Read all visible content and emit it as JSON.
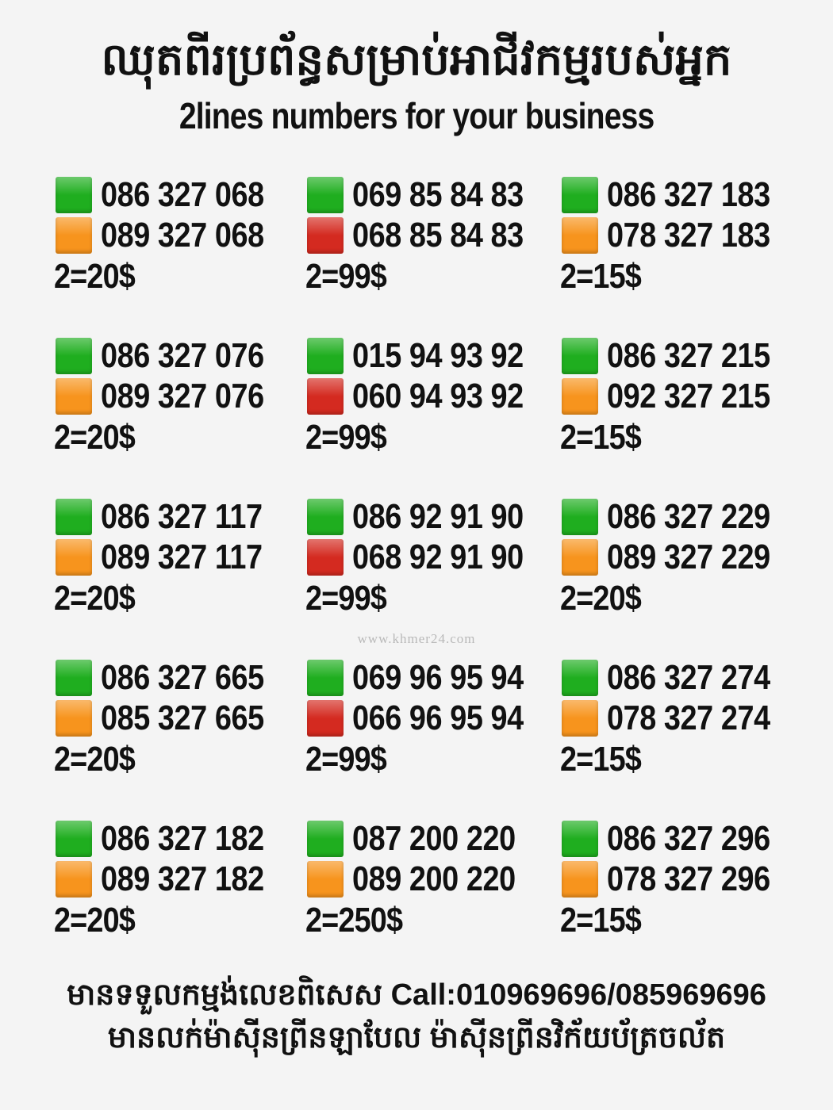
{
  "header": {
    "title_khmer": "ឈុតពីរប្រព័ន្ធសម្រាប់អាជីវកម្មរបស់អ្នក",
    "title_english": "2lines numbers for your business"
  },
  "colors": {
    "green": "#1fae1f",
    "orange": "#f7941d",
    "red": "#d42a20"
  },
  "cards": [
    {
      "lines": [
        {
          "color": "green",
          "number": "086 327 068"
        },
        {
          "color": "orange",
          "number": "089 327 068"
        }
      ],
      "price": "2=20$"
    },
    {
      "lines": [
        {
          "color": "green",
          "number": "069 85 84 83"
        },
        {
          "color": "red",
          "number": "068 85 84 83"
        }
      ],
      "price": "2=99$"
    },
    {
      "lines": [
        {
          "color": "green",
          "number": "086 327 183"
        },
        {
          "color": "orange",
          "number": "078 327 183"
        }
      ],
      "price": "2=15$"
    },
    {
      "lines": [
        {
          "color": "green",
          "number": "086 327 076"
        },
        {
          "color": "orange",
          "number": "089 327 076"
        }
      ],
      "price": "2=20$"
    },
    {
      "lines": [
        {
          "color": "green",
          "number": "015 94 93 92"
        },
        {
          "color": "red",
          "number": "060 94 93 92"
        }
      ],
      "price": "2=99$"
    },
    {
      "lines": [
        {
          "color": "green",
          "number": "086 327 215"
        },
        {
          "color": "orange",
          "number": "092 327 215"
        }
      ],
      "price": "2=15$"
    },
    {
      "lines": [
        {
          "color": "green",
          "number": "086 327 117"
        },
        {
          "color": "orange",
          "number": "089 327 117"
        }
      ],
      "price": "2=20$"
    },
    {
      "lines": [
        {
          "color": "green",
          "number": "086 92 91 90"
        },
        {
          "color": "red",
          "number": "068 92 91 90"
        }
      ],
      "price": "2=99$"
    },
    {
      "lines": [
        {
          "color": "green",
          "number": "086 327 229"
        },
        {
          "color": "orange",
          "number": "089 327 229"
        }
      ],
      "price": "2=20$"
    },
    {
      "lines": [
        {
          "color": "green",
          "number": "086 327 665"
        },
        {
          "color": "orange",
          "number": "085 327 665"
        }
      ],
      "price": "2=20$"
    },
    {
      "lines": [
        {
          "color": "green",
          "number": "069 96 95 94"
        },
        {
          "color": "red",
          "number": "066 96 95 94"
        }
      ],
      "price": "2=99$"
    },
    {
      "lines": [
        {
          "color": "green",
          "number": "086 327 274"
        },
        {
          "color": "orange",
          "number": "078 327 274"
        }
      ],
      "price": "2=15$"
    },
    {
      "lines": [
        {
          "color": "green",
          "number": "086 327 182"
        },
        {
          "color": "orange",
          "number": "089 327 182"
        }
      ],
      "price": "2=20$"
    },
    {
      "lines": [
        {
          "color": "green",
          "number": "087 200 220"
        },
        {
          "color": "orange",
          "number": "089 200 220"
        }
      ],
      "price": "2=250$"
    },
    {
      "lines": [
        {
          "color": "green",
          "number": "086 327 296"
        },
        {
          "color": "orange",
          "number": "078 327 296"
        }
      ],
      "price": "2=15$"
    }
  ],
  "footer": {
    "line1": "មានទទួលកម្មង់លេខពិសេស Call:010969696/085969696",
    "line2": "មានលក់ម៉ាស៊ីនព្រីនឡាបែល ម៉ាស៊ីនព្រីនវិក័យប័ត្រចល័ត"
  },
  "watermark": "www.khmer24.com"
}
